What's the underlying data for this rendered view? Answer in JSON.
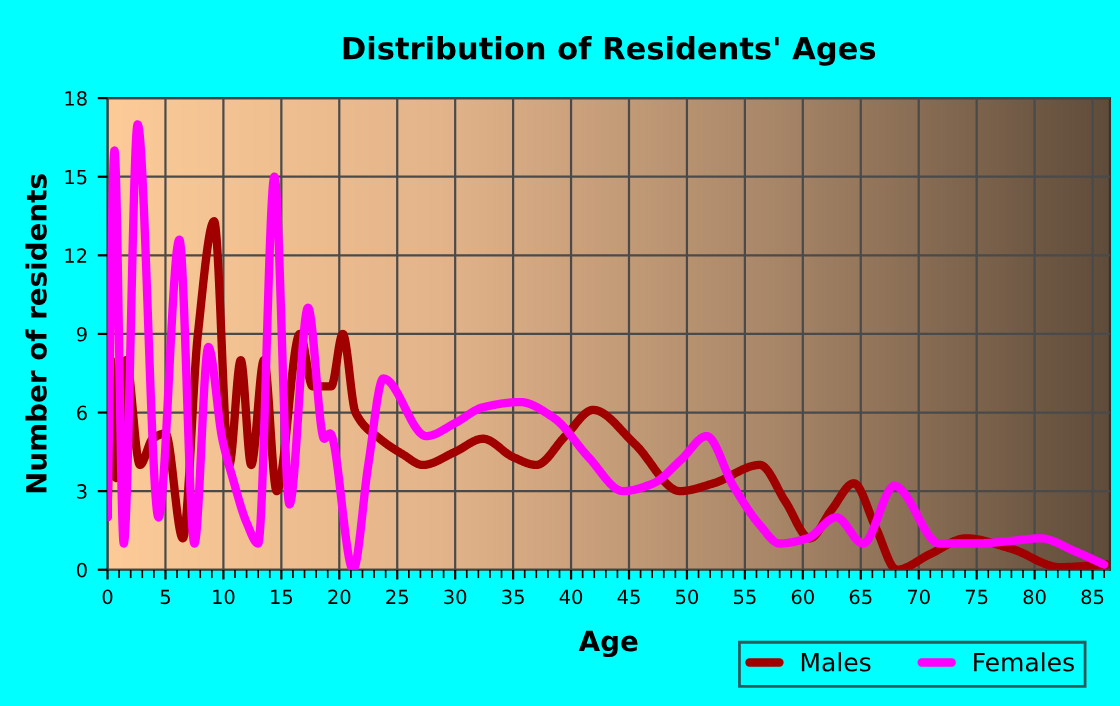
{
  "chart_data": {
    "type": "line",
    "title": "Distribution of Residents' Ages",
    "xlabel": "Age",
    "ylabel": "Number of residents",
    "xlim": [
      0,
      86.5
    ],
    "ylim": [
      0,
      18
    ],
    "xticks": [
      0,
      5,
      10,
      15,
      20,
      25,
      30,
      35,
      40,
      45,
      50,
      55,
      60,
      65,
      70,
      75,
      80,
      85
    ],
    "yticks": [
      0,
      3,
      6,
      9,
      12,
      15,
      18
    ],
    "grid": true,
    "legend": "bottom right",
    "marker": "none",
    "line_style": "solid",
    "series": [
      {
        "name": "Males",
        "color": "#a00000",
        "x": [
          0,
          0.3,
          0.75,
          1.6,
          2.8,
          3.9,
          5,
          6.5,
          7.8,
          9.2,
          10.5,
          11.5,
          12.4,
          13.5,
          14.6,
          16.6,
          17.7,
          18.6,
          19.3,
          20.3,
          21.4,
          23.5,
          25.5,
          27.2,
          30,
          32.4,
          35,
          37,
          39.5,
          41.9,
          45.5,
          49.4,
          52.3,
          56.3,
          58.5,
          60.6,
          62.5,
          64.4,
          66.3,
          68.1,
          71,
          74.1,
          78,
          82.2,
          86.2
        ],
        "values": [
          2,
          8,
          3.5,
          8,
          4,
          5,
          5.2,
          1.2,
          9,
          13.3,
          4,
          8,
          4,
          8,
          3,
          9,
          7,
          7,
          7,
          9,
          6,
          5,
          4.4,
          4,
          4.5,
          5,
          4.3,
          4,
          5.1,
          6.1,
          4.8,
          3,
          3.3,
          4,
          2.6,
          1.2,
          2.3,
          3.3,
          1.6,
          0,
          0.6,
          1.2,
          0.8,
          0.1,
          0.2
        ]
      },
      {
        "name": "Females",
        "color": "#ff00ff",
        "x": [
          0,
          0.6,
          1.4,
          2.6,
          4.4,
          6.2,
          7.5,
          8.7,
          9.9,
          10.8,
          12,
          13,
          14.4,
          15.7,
          17.3,
          18.7,
          19.2,
          21.2,
          22.5,
          23.8,
          27.5,
          30,
          32.4,
          35.6,
          38.5,
          41.5,
          44.5,
          47.1,
          49.5,
          51.7,
          54,
          56.3,
          58,
          60.4,
          62.9,
          65.2,
          67.9,
          71.8,
          74.9,
          78,
          80.5,
          83.5,
          86
        ],
        "values": [
          2,
          16,
          1,
          17,
          2,
          12.6,
          1,
          8.5,
          5,
          3.5,
          1.8,
          1,
          15,
          2.5,
          10,
          5,
          5.2,
          0,
          4,
          7.3,
          5.1,
          5.6,
          6.2,
          6.4,
          5.8,
          4.3,
          3,
          3.3,
          4.2,
          5.1,
          3.2,
          1.7,
          1,
          1.2,
          2,
          1,
          3.2,
          1,
          1,
          1.1,
          1.2,
          0.7,
          0.2
        ]
      }
    ]
  }
}
